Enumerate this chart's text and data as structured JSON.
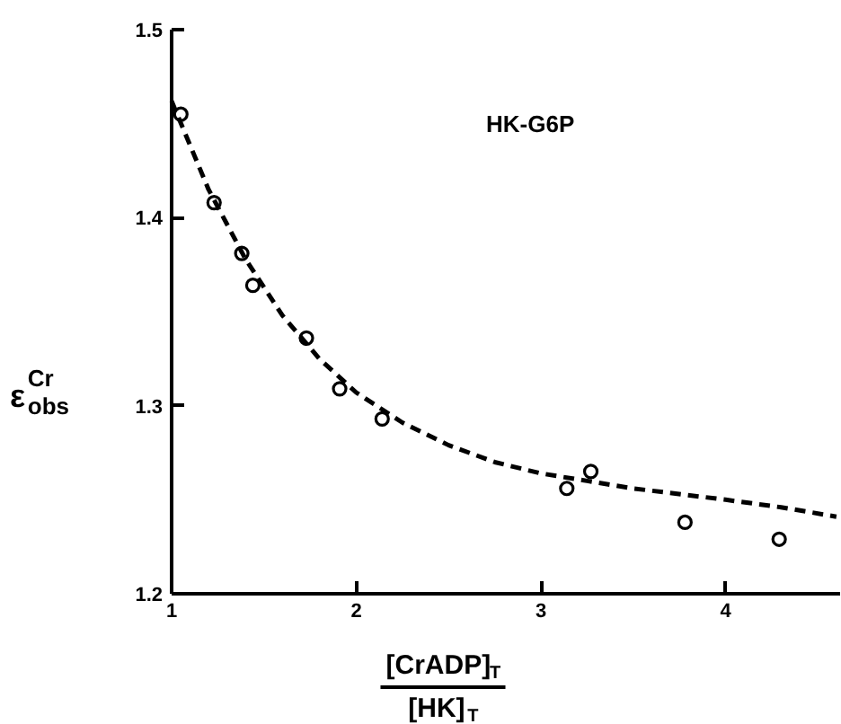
{
  "chart_data": {
    "type": "scatter",
    "xlabel": "[CrADP]$_{T}$ [HK]$_{T}$",
    "ylabel": "ε$^{Cr}$$_{obs}$",
    "annotations": [
      "HK-G6P"
    ],
    "xlim": [
      1,
      4.62
    ],
    "xticks": [
      1,
      2,
      3,
      4
    ],
    "ylim": [
      1.2,
      1.5
    ],
    "yticks": [
      1.2,
      1.3,
      1.4,
      1.5
    ],
    "grid": false,
    "legend": false,
    "series": [
      {
        "marker": "circle",
        "color": "#000000",
        "x": [
          1.05,
          1.23,
          1.38,
          1.44,
          1.73,
          1.91,
          2.14,
          3.14,
          3.27,
          3.78,
          4.29
        ],
        "values": [
          1.455,
          1.408,
          1.381,
          1.364,
          1.336,
          1.309,
          1.293,
          1.256,
          1.265,
          1.238,
          1.229
        ]
      },
      {
        "type": "line",
        "line_style": "dashed",
        "color": "#000000",
        "x": [
          1.0,
          1.2,
          1.4,
          1.6,
          1.8,
          2.0,
          2.25,
          2.5,
          2.75,
          3.0,
          3.25,
          3.5,
          4.0,
          4.3,
          4.6
        ],
        "values": [
          1.462,
          1.415,
          1.378,
          1.348,
          1.325,
          1.307,
          1.291,
          1.279,
          1.27,
          1.264,
          1.26,
          1.256,
          1.25,
          1.246,
          1.241
        ]
      }
    ]
  }
}
